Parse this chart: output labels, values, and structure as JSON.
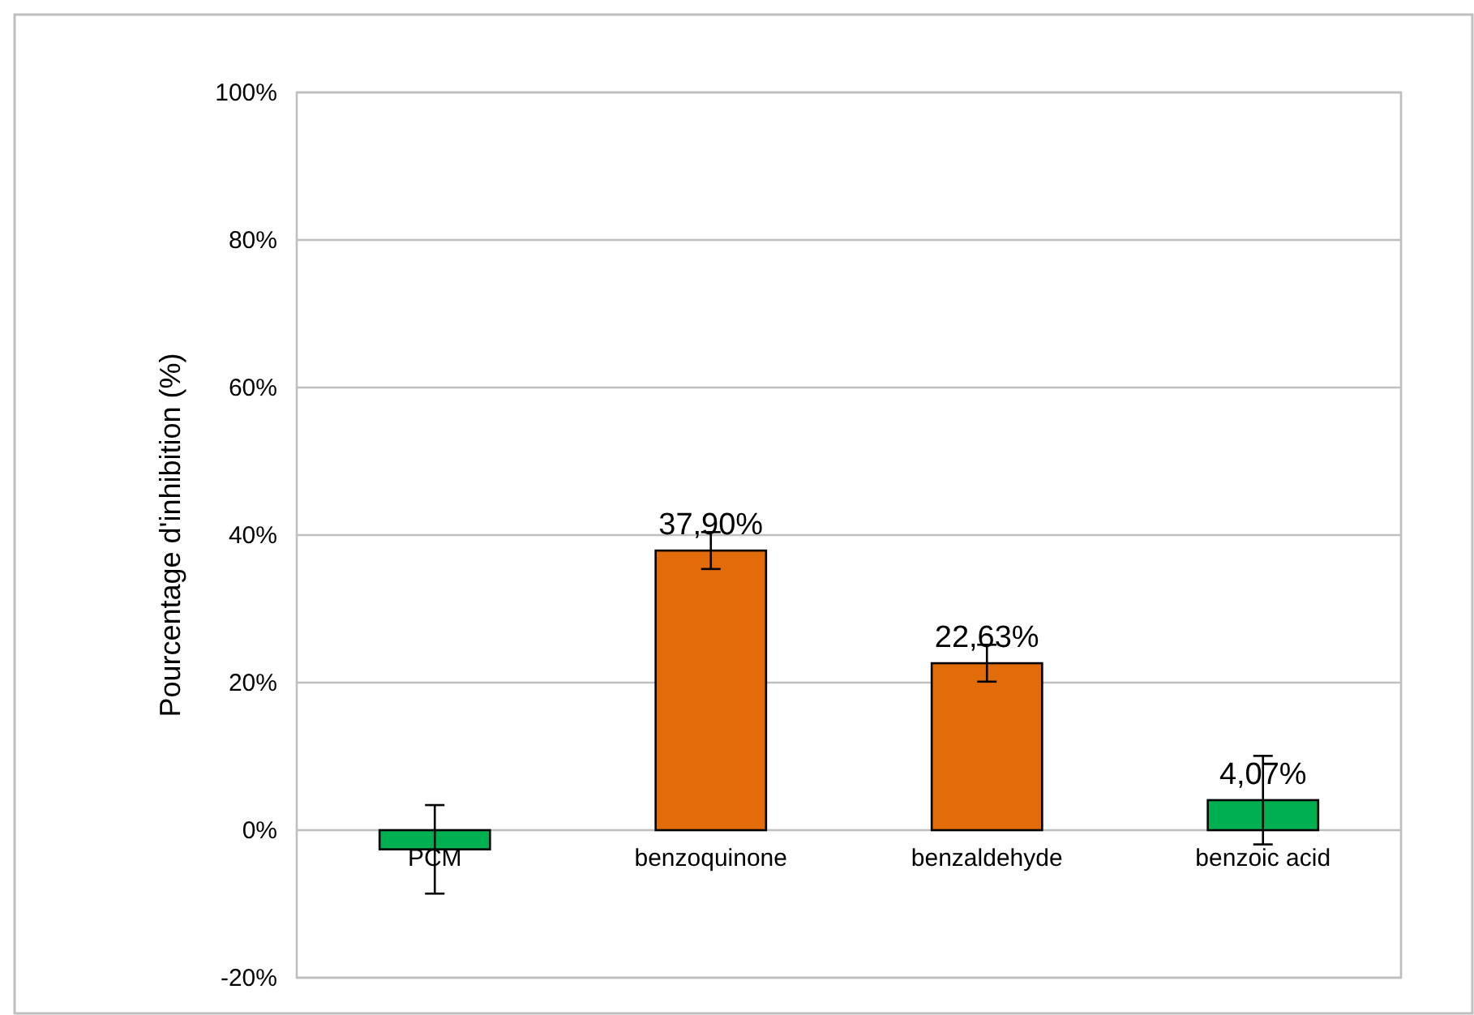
{
  "chart_data": {
    "type": "bar",
    "ylabel": "Pourcentage d'inhibition (%)",
    "categories": [
      "PCM",
      "benzoquinone",
      "benzaldehyde",
      "benzoic acid"
    ],
    "values": [
      -2.6,
      37.9,
      22.63,
      4.07
    ],
    "colors": [
      "#00b050",
      "#e36c0a",
      "#e36c0a",
      "#00b050"
    ],
    "errors": [
      6,
      2.5,
      2.5,
      6
    ],
    "value_labels": [
      null,
      "37,90%",
      "22,63%",
      "4,07%"
    ],
    "ylim": [
      -20,
      100
    ],
    "yticks": [
      {
        "value": -20,
        "label": "-20%"
      },
      {
        "value": 0,
        "label": "0%"
      },
      {
        "value": 20,
        "label": "20%"
      },
      {
        "value": 40,
        "label": "40%"
      },
      {
        "value": 60,
        "label": "60%"
      },
      {
        "value": 80,
        "label": "80%"
      },
      {
        "value": 100,
        "label": "100%"
      }
    ],
    "grid": "y"
  }
}
